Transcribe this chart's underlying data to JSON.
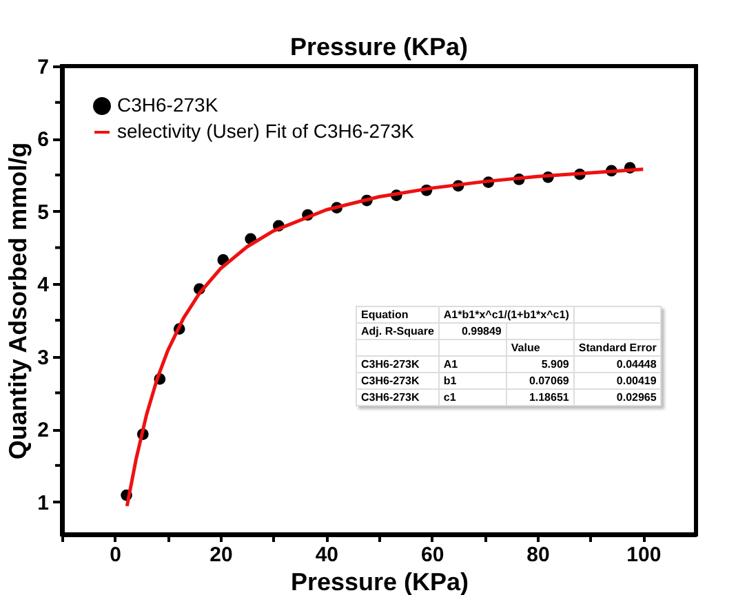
{
  "chart_data": {
    "type": "scatter",
    "x2label": "Pressure (KPa)",
    "xlabel": "Pressure (KPa)",
    "ylabel": "Quantity Adsorbed mmol/g",
    "xlim": [
      -10,
      110
    ],
    "xticks": [
      {
        "value": -10,
        "label": null
      },
      0,
      {
        "value": 10,
        "label": null
      },
      20,
      {
        "value": 30,
        "label": null
      },
      40,
      {
        "value": 50,
        "label": null
      },
      60,
      {
        "value": 70,
        "label": null
      },
      80,
      {
        "value": 90,
        "label": null
      },
      100
    ],
    "ylim": [
      0.55,
      7
    ],
    "yticks": [
      1,
      {
        "value": 1.5,
        "label": null
      },
      2,
      {
        "value": 2.5,
        "label": null
      },
      3,
      {
        "value": 3.5,
        "label": null
      },
      4,
      {
        "value": 4.5,
        "label": null
      },
      5,
      {
        "value": 5.5,
        "label": null
      },
      6,
      {
        "value": 6.5,
        "label": null
      },
      7
    ],
    "legend": "top left",
    "grid": false,
    "series": [
      {
        "name": "C3H6-273K",
        "type": "scatter",
        "marker": "circle",
        "color": "#000000",
        "x": [
          2.2,
          5.3,
          8.5,
          12.2,
          16,
          20.5,
          25.7,
          31,
          36.5,
          42,
          47.7,
          53.3,
          59,
          65,
          70.7,
          76.5,
          82,
          88,
          94,
          97.5
        ],
        "values": [
          1.09,
          1.93,
          2.69,
          3.38,
          3.93,
          4.33,
          4.62,
          4.8,
          4.95,
          5.05,
          5.15,
          5.22,
          5.29,
          5.35,
          5.4,
          5.44,
          5.47,
          5.51,
          5.56,
          5.6
        ]
      },
      {
        "name": "selectivity (User) Fit of C3H6-273K",
        "type": "line",
        "line_style": "solid",
        "color": "#ee1111",
        "x": [
          2.3,
          4,
          6,
          8,
          10,
          13,
          16,
          20,
          25,
          30,
          40,
          50,
          60,
          70,
          80,
          90,
          100
        ],
        "values": [
          0.94,
          1.58,
          2.2,
          2.69,
          3.08,
          3.53,
          3.87,
          4.21,
          4.51,
          4.73,
          5.02,
          5.2,
          5.32,
          5.41,
          5.48,
          5.53,
          5.58
        ]
      }
    ],
    "annotations": [
      "Equation",
      "A1*b1*x^c1/(1+b1*x^c1)",
      "Adj. R-Square",
      "0.99849",
      "Value",
      "Standard Error",
      "C3H6-273K",
      "A1",
      "5.909",
      "0.04448",
      "C3H6-273K",
      "b1",
      "0.07069",
      "0.00419",
      "C3H6-273K",
      "c1",
      "1.18651",
      "0.02965"
    ]
  }
}
